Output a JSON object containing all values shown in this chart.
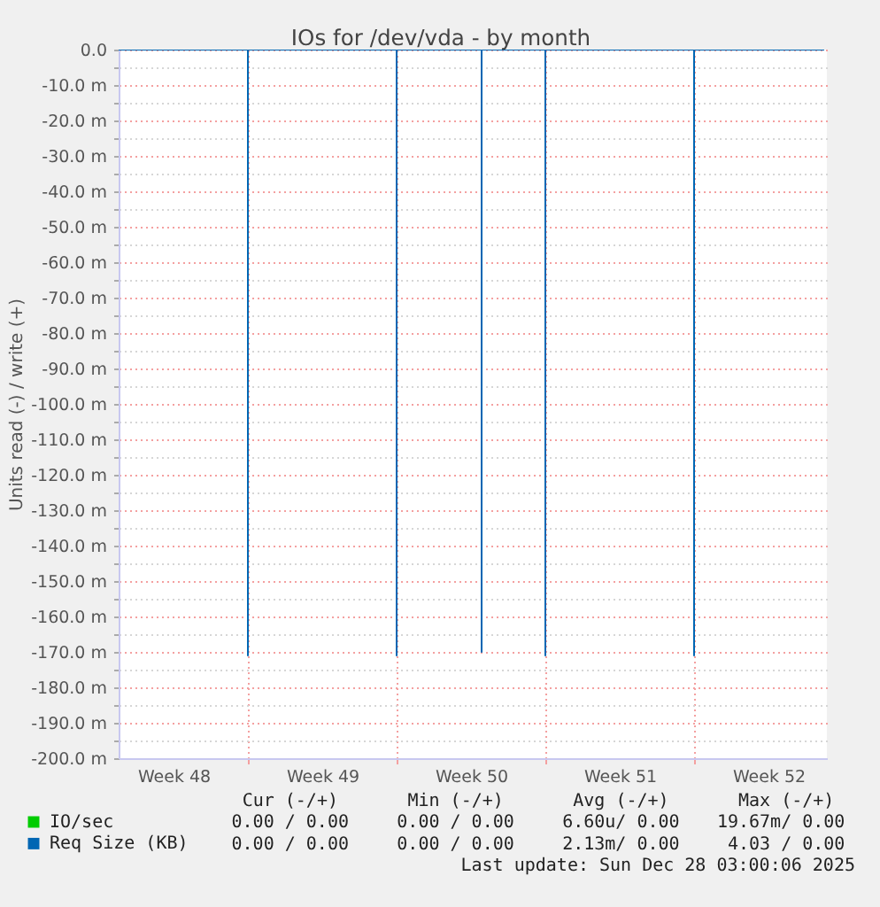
{
  "chart_data": {
    "type": "step",
    "title": "IOs for /dev/vda - by month",
    "ylabel": "Units read (-) / write (+)",
    "xlim": [
      "2025-11-24T22:00",
      "2025-12-28T06:00"
    ],
    "xticks": [
      {
        "value": "2025-11-27T12:00",
        "label": "Week 48"
      },
      {
        "value": "2025-12-01T00:00",
        "label": null
      },
      {
        "value": "2025-12-04T12:00",
        "label": "Week 49"
      },
      {
        "value": "2025-12-08T00:00",
        "label": null
      },
      {
        "value": "2025-12-11T12:00",
        "label": "Week 50"
      },
      {
        "value": "2025-12-15T00:00",
        "label": null
      },
      {
        "value": "2025-12-18T12:00",
        "label": "Week 51"
      },
      {
        "value": "2025-12-22T00:00",
        "label": null
      },
      {
        "value": "2025-12-25T12:00",
        "label": "Week 52"
      }
    ],
    "ylim": [
      -200,
      0
    ],
    "yticks": [
      {
        "value": 0,
        "label": "0.0"
      },
      {
        "value": -5,
        "label": null
      },
      {
        "value": -10,
        "label": "-10.0 m"
      },
      {
        "value": -15,
        "label": null
      },
      {
        "value": -20,
        "label": "-20.0 m"
      },
      {
        "value": -25,
        "label": null
      },
      {
        "value": -30,
        "label": "-30.0 m"
      },
      {
        "value": -35,
        "label": null
      },
      {
        "value": -40,
        "label": "-40.0 m"
      },
      {
        "value": -45,
        "label": null
      },
      {
        "value": -50,
        "label": "-50.0 m"
      },
      {
        "value": -55,
        "label": null
      },
      {
        "value": -60,
        "label": "-60.0 m"
      },
      {
        "value": -65,
        "label": null
      },
      {
        "value": -70,
        "label": "-70.0 m"
      },
      {
        "value": -75,
        "label": null
      },
      {
        "value": -80,
        "label": "-80.0 m"
      },
      {
        "value": -85,
        "label": null
      },
      {
        "value": -90,
        "label": "-90.0 m"
      },
      {
        "value": -95,
        "label": null
      },
      {
        "value": -100,
        "label": "-100.0 m"
      },
      {
        "value": -105,
        "label": null
      },
      {
        "value": -110,
        "label": "-110.0 m"
      },
      {
        "value": -115,
        "label": null
      },
      {
        "value": -120,
        "label": "-120.0 m"
      },
      {
        "value": -125,
        "label": null
      },
      {
        "value": -130,
        "label": "-130.0 m"
      },
      {
        "value": -135,
        "label": null
      },
      {
        "value": -140,
        "label": "-140.0 m"
      },
      {
        "value": -145,
        "label": null
      },
      {
        "value": -150,
        "label": "-150.0 m"
      },
      {
        "value": -155,
        "label": null
      },
      {
        "value": -160,
        "label": "-160.0 m"
      },
      {
        "value": -165,
        "label": null
      },
      {
        "value": -170,
        "label": "-170.0 m"
      },
      {
        "value": -175,
        "label": null
      },
      {
        "value": -180,
        "label": "-180.0 m"
      },
      {
        "value": -185,
        "label": null
      },
      {
        "value": -190,
        "label": "-190.0 m"
      },
      {
        "value": -195,
        "label": null
      },
      {
        "value": -200,
        "label": "-200.0 m"
      }
    ],
    "series": [
      {
        "name": "IO/sec",
        "color": "#00cc00"
      },
      {
        "name": "Req Size (KB)",
        "color": "#0066b3",
        "x": [
          "2025-11-24T22:00",
          "2025-12-01T00:00",
          "2025-12-01T00:00",
          "2025-12-08T00:00",
          "2025-12-08T00:00",
          "2025-12-12T00:00",
          "2025-12-12T00:00",
          "2025-12-15T00:00",
          "2025-12-15T00:00",
          "2025-12-22T00:00",
          "2025-12-22T00:00",
          "2025-12-28T03:00"
        ],
        "values": [
          0,
          -171,
          0,
          -171,
          0,
          -170,
          0,
          -171,
          0,
          -171,
          0,
          0
        ]
      }
    ],
    "grid": true,
    "legend": "bottom",
    "annotations": [
      "Cur (-/+)",
      "Min (-/+)",
      "Avg (-/+)",
      "Max (-/+)",
      "0.00 / 0.00",
      "0.00 / 0.00",
      "6.60u/ 0.00",
      "19.67m/ 0.00",
      "0.00 / 0.00",
      "0.00 / 0.00",
      "2.13m/ 0.00",
      "4.03 / 0.00",
      "Last update: Sun Dec 28 03:00:06 2025"
    ]
  }
}
